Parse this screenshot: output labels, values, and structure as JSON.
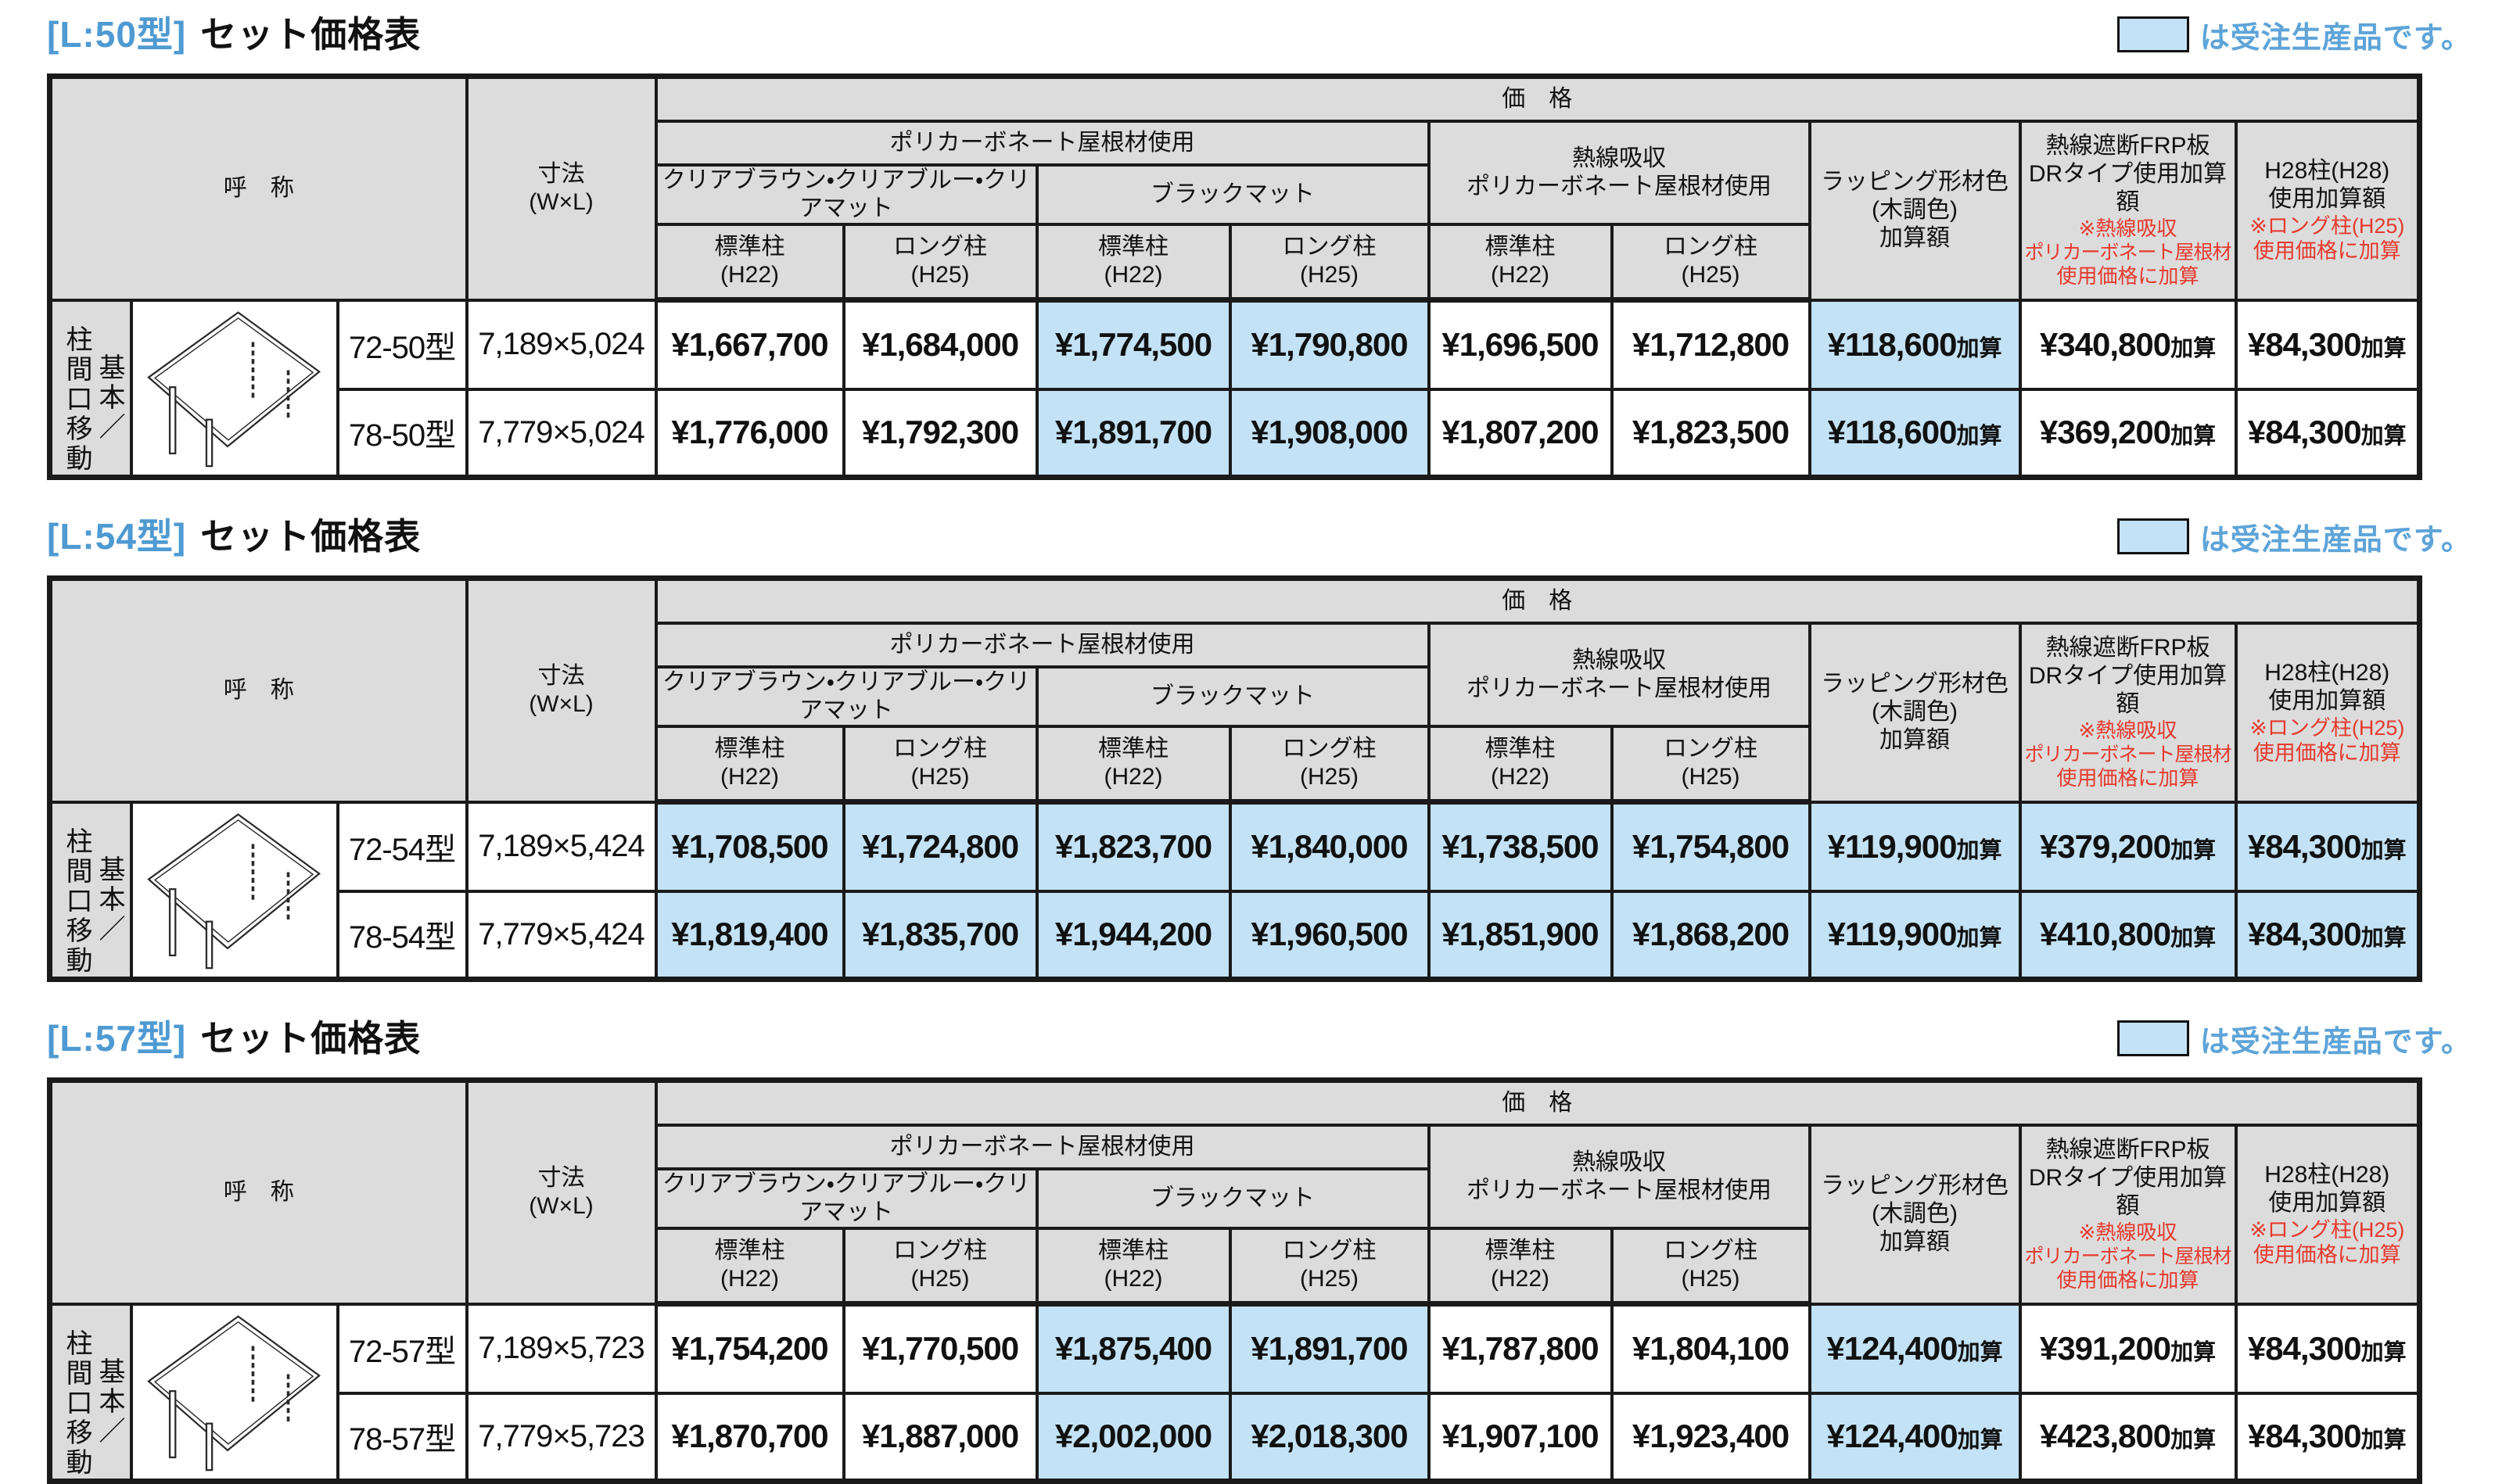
{
  "colors": {
    "accent_blue": "#4F9AD2",
    "legend_blue": "#5EA4D8",
    "cell_blue": "#C3E2F5",
    "header_gray": "#DCDCDC",
    "note_red": "#E63A2E",
    "border": "#1A1A1A"
  },
  "legend": {
    "text": "は受注生産品です。"
  },
  "column_headers": {
    "name": "呼　称",
    "dim_line1": "寸法",
    "dim_line2": "(W×L)",
    "price": "価　格",
    "poly_roof": "ポリカーボネート屋根材使用",
    "clear_colors": "クリアブラウン・クリアブルー・クリアマット",
    "black_mat": "ブラックマット",
    "heat_line1": "熱線吸収",
    "heat_line2": "ポリカーボネート屋根材使用",
    "std_post": "標準柱",
    "std_post_h": "(H22)",
    "long_post": "ロング柱",
    "long_post_h": "(H25)",
    "wrap_line1": "ラッピング形材色",
    "wrap_line2": "(木調色)",
    "wrap_line3": "加算額",
    "frp_line1": "熱線遮断FRP板",
    "frp_line2": "DRタイプ使用加算額",
    "frp_note1": "※熱線吸収",
    "frp_note2": "ポリカーボネート屋根材",
    "frp_note3": "使用価格に加算",
    "h28_line1": "H28柱(H28)",
    "h28_line2": "使用加算額",
    "h28_note1": "※ロング柱(H25)",
    "h28_note2": "使用価格に加算"
  },
  "row_group_label": {
    "primary": "柱間口移動",
    "secondary": "基本／"
  },
  "tables": [
    {
      "tag": "[L:50型]",
      "title": "セット価格表",
      "rows": [
        {
          "model": "72-50型",
          "dim": "7,189×5,024",
          "cells": [
            {
              "v": "¥1,667,700",
              "s": "",
              "b": false
            },
            {
              "v": "¥1,684,000",
              "s": "",
              "b": false
            },
            {
              "v": "¥1,774,500",
              "s": "",
              "b": true
            },
            {
              "v": "¥1,790,800",
              "s": "",
              "b": true
            },
            {
              "v": "¥1,696,500",
              "s": "",
              "b": false
            },
            {
              "v": "¥1,712,800",
              "s": "",
              "b": false
            },
            {
              "v": "¥118,600",
              "s": "加算",
              "b": true
            },
            {
              "v": "¥340,800",
              "s": "加算",
              "b": false
            },
            {
              "v": "¥84,300",
              "s": "加算",
              "b": false
            }
          ]
        },
        {
          "model": "78-50型",
          "dim": "7,779×5,024",
          "cells": [
            {
              "v": "¥1,776,000",
              "s": "",
              "b": false
            },
            {
              "v": "¥1,792,300",
              "s": "",
              "b": false
            },
            {
              "v": "¥1,891,700",
              "s": "",
              "b": true
            },
            {
              "v": "¥1,908,000",
              "s": "",
              "b": true
            },
            {
              "v": "¥1,807,200",
              "s": "",
              "b": false
            },
            {
              "v": "¥1,823,500",
              "s": "",
              "b": false
            },
            {
              "v": "¥118,600",
              "s": "加算",
              "b": true
            },
            {
              "v": "¥369,200",
              "s": "加算",
              "b": false
            },
            {
              "v": "¥84,300",
              "s": "加算",
              "b": false
            }
          ]
        }
      ]
    },
    {
      "tag": "[L:54型]",
      "title": "セット価格表",
      "rows": [
        {
          "model": "72-54型",
          "dim": "7,189×5,424",
          "cells": [
            {
              "v": "¥1,708,500",
              "s": "",
              "b": true
            },
            {
              "v": "¥1,724,800",
              "s": "",
              "b": true
            },
            {
              "v": "¥1,823,700",
              "s": "",
              "b": true
            },
            {
              "v": "¥1,840,000",
              "s": "",
              "b": true
            },
            {
              "v": "¥1,738,500",
              "s": "",
              "b": true
            },
            {
              "v": "¥1,754,800",
              "s": "",
              "b": true
            },
            {
              "v": "¥119,900",
              "s": "加算",
              "b": true
            },
            {
              "v": "¥379,200",
              "s": "加算",
              "b": true
            },
            {
              "v": "¥84,300",
              "s": "加算",
              "b": true
            }
          ]
        },
        {
          "model": "78-54型",
          "dim": "7,779×5,424",
          "cells": [
            {
              "v": "¥1,819,400",
              "s": "",
              "b": true
            },
            {
              "v": "¥1,835,700",
              "s": "",
              "b": true
            },
            {
              "v": "¥1,944,200",
              "s": "",
              "b": true
            },
            {
              "v": "¥1,960,500",
              "s": "",
              "b": true
            },
            {
              "v": "¥1,851,900",
              "s": "",
              "b": true
            },
            {
              "v": "¥1,868,200",
              "s": "",
              "b": true
            },
            {
              "v": "¥119,900",
              "s": "加算",
              "b": true
            },
            {
              "v": "¥410,800",
              "s": "加算",
              "b": true
            },
            {
              "v": "¥84,300",
              "s": "加算",
              "b": true
            }
          ]
        }
      ]
    },
    {
      "tag": "[L:57型]",
      "title": "セット価格表",
      "rows": [
        {
          "model": "72-57型",
          "dim": "7,189×5,723",
          "cells": [
            {
              "v": "¥1,754,200",
              "s": "",
              "b": false
            },
            {
              "v": "¥1,770,500",
              "s": "",
              "b": false
            },
            {
              "v": "¥1,875,400",
              "s": "",
              "b": true
            },
            {
              "v": "¥1,891,700",
              "s": "",
              "b": true
            },
            {
              "v": "¥1,787,800",
              "s": "",
              "b": false
            },
            {
              "v": "¥1,804,100",
              "s": "",
              "b": false
            },
            {
              "v": "¥124,400",
              "s": "加算",
              "b": true
            },
            {
              "v": "¥391,200",
              "s": "加算",
              "b": false
            },
            {
              "v": "¥84,300",
              "s": "加算",
              "b": false
            }
          ]
        },
        {
          "model": "78-57型",
          "dim": "7,779×5,723",
          "cells": [
            {
              "v": "¥1,870,700",
              "s": "",
              "b": false
            },
            {
              "v": "¥1,887,000",
              "s": "",
              "b": false
            },
            {
              "v": "¥2,002,000",
              "s": "",
              "b": true
            },
            {
              "v": "¥2,018,300",
              "s": "",
              "b": true
            },
            {
              "v": "¥1,907,100",
              "s": "",
              "b": false
            },
            {
              "v": "¥1,923,400",
              "s": "",
              "b": false
            },
            {
              "v": "¥124,400",
              "s": "加算",
              "b": true
            },
            {
              "v": "¥423,800",
              "s": "加算",
              "b": false
            },
            {
              "v": "¥84,300",
              "s": "加算",
              "b": false
            }
          ]
        }
      ]
    }
  ]
}
